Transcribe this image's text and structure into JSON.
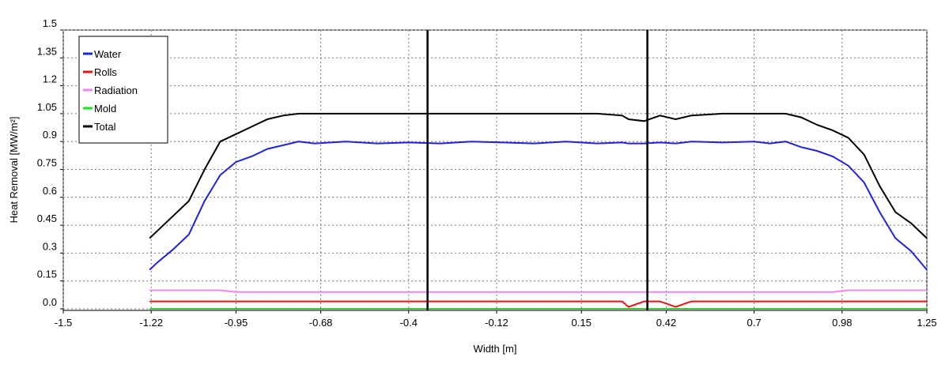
{
  "chart_data": {
    "type": "line",
    "x_label": "Width [m]",
    "y_label": "Heat Removal [MW/m²]",
    "x": [
      -1.225,
      -1.2,
      -1.15,
      -1.1,
      -1.05,
      -1.0,
      -0.95,
      -0.9,
      -0.85,
      -0.8,
      -0.75,
      -0.7,
      -0.6,
      -0.5,
      -0.4,
      -0.3,
      -0.2,
      -0.1,
      0,
      0.1,
      0.2,
      0.28,
      0.3,
      0.35,
      0.4,
      0.45,
      0.5,
      0.6,
      0.7,
      0.75,
      0.8,
      0.85,
      0.9,
      0.95,
      1.0,
      1.05,
      1.1,
      1.15,
      1.2,
      1.25
    ],
    "series": [
      {
        "name": "Water",
        "color": "#2222dd",
        "values": [
          0.21,
          0.25,
          0.32,
          0.4,
          0.58,
          0.72,
          0.79,
          0.82,
          0.86,
          0.88,
          0.9,
          0.89,
          0.9,
          0.89,
          0.895,
          0.89,
          0.9,
          0.895,
          0.89,
          0.9,
          0.89,
          0.895,
          0.89,
          0.89,
          0.895,
          0.89,
          0.9,
          0.895,
          0.9,
          0.89,
          0.9,
          0.87,
          0.85,
          0.82,
          0.77,
          0.68,
          0.52,
          0.38,
          0.31,
          0.21
        ]
      },
      {
        "name": "Rolls",
        "color": "#ee1111",
        "values": [
          0.04,
          0.04,
          0.04,
          0.04,
          0.04,
          0.04,
          0.04,
          0.04,
          0.04,
          0.04,
          0.04,
          0.04,
          0.04,
          0.04,
          0.04,
          0.04,
          0.04,
          0.04,
          0.04,
          0.04,
          0.04,
          0.04,
          0.01,
          0.04,
          0.04,
          0.01,
          0.04,
          0.04,
          0.04,
          0.04,
          0.04,
          0.04,
          0.04,
          0.04,
          0.04,
          0.04,
          0.04,
          0.04,
          0.04,
          0.04
        ]
      },
      {
        "name": "Radiation",
        "color": "#ee88ee",
        "values": [
          0.1,
          0.1,
          0.1,
          0.1,
          0.1,
          0.1,
          0.09,
          0.09,
          0.09,
          0.09,
          0.09,
          0.09,
          0.09,
          0.09,
          0.09,
          0.09,
          0.09,
          0.09,
          0.09,
          0.09,
          0.09,
          0.09,
          0.09,
          0.09,
          0.09,
          0.09,
          0.09,
          0.09,
          0.09,
          0.09,
          0.09,
          0.09,
          0.09,
          0.09,
          0.1,
          0.1,
          0.1,
          0.1,
          0.1,
          0.1
        ]
      },
      {
        "name": "Mold",
        "color": "#22dd22",
        "values": [
          0,
          0,
          0,
          0,
          0,
          0,
          0,
          0,
          0,
          0,
          0,
          0,
          0,
          0,
          0,
          0,
          0,
          0,
          0,
          0,
          0,
          0,
          0,
          0,
          0,
          0,
          0,
          0,
          0,
          0,
          0,
          0,
          0,
          0,
          0,
          0,
          0,
          0,
          0,
          0
        ]
      },
      {
        "name": "Total",
        "color": "#000000",
        "values": [
          0.38,
          0.42,
          0.5,
          0.58,
          0.75,
          0.9,
          0.94,
          0.98,
          1.02,
          1.04,
          1.05,
          1.05,
          1.05,
          1.05,
          1.05,
          1.05,
          1.05,
          1.05,
          1.05,
          1.05,
          1.05,
          1.04,
          1.02,
          1.01,
          1.04,
          1.02,
          1.04,
          1.05,
          1.05,
          1.05,
          1.05,
          1.03,
          0.99,
          0.96,
          0.92,
          0.83,
          0.66,
          0.52,
          0.46,
          0.38
        ]
      }
    ],
    "vlines": [
      -0.34,
      0.36
    ],
    "xlim": [
      -1.5,
      1.25
    ],
    "xticks": [
      -1.5,
      -1.22,
      -0.95,
      -0.68,
      -0.4,
      -0.12,
      0.15,
      0.42,
      0.7,
      0.98,
      1.25
    ],
    "ylim": [
      0,
      1.5
    ],
    "yticks": [
      {
        "value": 0,
        "label": "0.0"
      },
      0.15,
      0.3,
      0.45,
      0.6,
      0.75,
      0.9,
      1.05,
      1.2,
      1.35,
      1.5
    ],
    "grid": true,
    "legend": "upper left"
  }
}
